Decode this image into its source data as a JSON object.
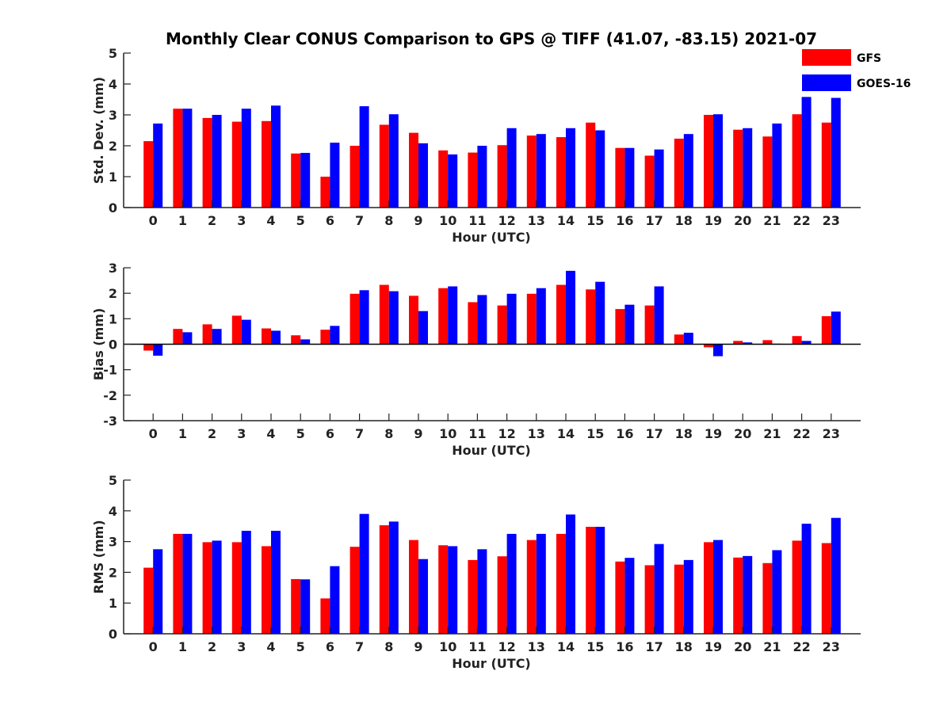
{
  "figure_title": "Monthly Clear CONUS Comparison to GPS @ TIFF (41.07, -83.15) 2021-07",
  "chart_data": [
    {
      "type": "bar",
      "xlabel": "Hour (UTC)",
      "ylabel": "Std. Dev. (mm)",
      "ylim": [
        0,
        5
      ],
      "yticks": [
        "0",
        "1",
        "2",
        "3",
        "4",
        "5"
      ],
      "categories": [
        "0",
        "1",
        "2",
        "3",
        "4",
        "5",
        "6",
        "7",
        "8",
        "9",
        "10",
        "11",
        "12",
        "13",
        "14",
        "15",
        "16",
        "17",
        "18",
        "19",
        "20",
        "21",
        "22",
        "23"
      ],
      "series": [
        {
          "name": "GFS",
          "color": "#ff0000",
          "values": [
            2.15,
            3.2,
            2.9,
            2.78,
            2.8,
            1.75,
            1.0,
            2.0,
            2.68,
            2.42,
            1.85,
            1.78,
            2.02,
            2.33,
            2.28,
            2.75,
            1.93,
            1.68,
            2.23,
            3.0,
            2.52,
            2.3,
            3.02,
            2.75
          ]
        },
        {
          "name": "GOES-16",
          "color": "#0000ff",
          "values": [
            2.72,
            3.2,
            3.0,
            3.2,
            3.3,
            1.77,
            2.1,
            3.28,
            3.02,
            2.08,
            1.72,
            2.0,
            2.57,
            2.38,
            2.57,
            2.5,
            1.93,
            1.88,
            2.38,
            3.02,
            2.57,
            2.72,
            3.58,
            3.55
          ]
        }
      ],
      "legend_position": "top-right",
      "grid": false
    },
    {
      "type": "bar",
      "xlabel": "Hour (UTC)",
      "ylabel": "Bias (mm)",
      "ylim": [
        -3,
        3
      ],
      "yticks": [
        "-3",
        "-2",
        "-1",
        "0",
        "1",
        "2",
        "3"
      ],
      "categories": [
        "0",
        "1",
        "2",
        "3",
        "4",
        "5",
        "6",
        "7",
        "8",
        "9",
        "10",
        "11",
        "12",
        "13",
        "14",
        "15",
        "16",
        "17",
        "18",
        "19",
        "20",
        "21",
        "22",
        "23"
      ],
      "series": [
        {
          "name": "GFS",
          "color": "#ff0000",
          "values": [
            -0.25,
            0.6,
            0.78,
            1.12,
            0.62,
            0.35,
            0.57,
            1.98,
            2.33,
            1.9,
            2.2,
            1.65,
            1.52,
            1.98,
            2.33,
            2.15,
            1.38,
            1.52,
            0.38,
            -0.12,
            0.13,
            0.16,
            0.32,
            1.1
          ]
        },
        {
          "name": "GOES-16",
          "color": "#0000ff",
          "values": [
            -0.45,
            0.47,
            0.6,
            0.96,
            0.53,
            0.19,
            0.72,
            2.12,
            2.08,
            1.3,
            2.27,
            1.93,
            1.98,
            2.2,
            2.88,
            2.45,
            1.55,
            2.27,
            0.45,
            -0.47,
            0.07,
            0.02,
            0.13,
            1.28
          ]
        }
      ],
      "grid": false
    },
    {
      "type": "bar",
      "xlabel": "Hour (UTC)",
      "ylabel": "RMS (mm)",
      "ylim": [
        0,
        5
      ],
      "yticks": [
        "0",
        "1",
        "2",
        "3",
        "4",
        "5"
      ],
      "categories": [
        "0",
        "1",
        "2",
        "3",
        "4",
        "5",
        "6",
        "7",
        "8",
        "9",
        "10",
        "11",
        "12",
        "13",
        "14",
        "15",
        "16",
        "17",
        "18",
        "19",
        "20",
        "21",
        "22",
        "23"
      ],
      "series": [
        {
          "name": "GFS",
          "color": "#ff0000",
          "values": [
            2.15,
            3.25,
            2.98,
            2.98,
            2.85,
            1.78,
            1.15,
            2.83,
            3.53,
            3.05,
            2.88,
            2.4,
            2.52,
            3.05,
            3.25,
            3.48,
            2.35,
            2.23,
            2.25,
            2.98,
            2.48,
            2.3,
            3.03,
            2.95
          ]
        },
        {
          "name": "GOES-16",
          "color": "#0000ff",
          "values": [
            2.75,
            3.25,
            3.03,
            3.35,
            3.35,
            1.77,
            2.2,
            3.9,
            3.65,
            2.43,
            2.85,
            2.75,
            3.25,
            3.25,
            3.88,
            3.48,
            2.47,
            2.92,
            2.4,
            3.05,
            2.53,
            2.72,
            3.58,
            3.77
          ]
        }
      ],
      "grid": false
    }
  ]
}
